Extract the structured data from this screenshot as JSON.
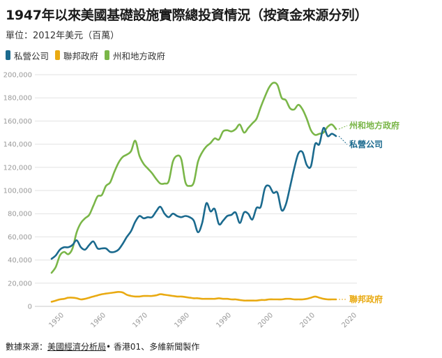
{
  "title": "1947年以來美國基礎設施實際總投資情況（按資金來源分列）",
  "subtitle": "單位：2012年美元（百萬）",
  "footer": {
    "prefix": "數據來源：",
    "source": "美國經濟分析局",
    "suffix": "• 香港01、多維新聞製作"
  },
  "colors": {
    "private": "#1b6a8e",
    "federal": "#e9aa12",
    "state_local": "#7ab648",
    "grid": "#e2e2e2",
    "axis_text": "#999999"
  },
  "chart_data": {
    "type": "line",
    "x_label": "",
    "y_label": "",
    "xlim": [
      1943,
      2020
    ],
    "ylim": [
      0,
      200000
    ],
    "x_ticks": [
      1950,
      1960,
      1970,
      1980,
      1990,
      2000,
      2010,
      2020
    ],
    "y_ticks": [
      0,
      20000,
      40000,
      60000,
      80000,
      100000,
      120000,
      140000,
      160000,
      180000,
      200000
    ],
    "y_tick_labels": [
      "0",
      "20,000",
      "40,000",
      "60,000",
      "80,000",
      "100,000",
      "120,000",
      "140,000",
      "160,000",
      "180,000",
      "200,000"
    ],
    "grid": true,
    "legend_position": "top-left",
    "series": [
      {
        "name": "私營公司",
        "key": "private",
        "end_label": "私營公司",
        "points": [
          [
            1947,
            41000
          ],
          [
            1948,
            44000
          ],
          [
            1949,
            49000
          ],
          [
            1950,
            51000
          ],
          [
            1951,
            51000
          ],
          [
            1952,
            53000
          ],
          [
            1953,
            57000
          ],
          [
            1954,
            51000
          ],
          [
            1955,
            49000
          ],
          [
            1956,
            53000
          ],
          [
            1957,
            56000
          ],
          [
            1958,
            50000
          ],
          [
            1959,
            50000
          ],
          [
            1960,
            50000
          ],
          [
            1961,
            47000
          ],
          [
            1962,
            47000
          ],
          [
            1963,
            49000
          ],
          [
            1964,
            54000
          ],
          [
            1965,
            60000
          ],
          [
            1966,
            65000
          ],
          [
            1967,
            73000
          ],
          [
            1968,
            78000
          ],
          [
            1969,
            76000
          ],
          [
            1970,
            77000
          ],
          [
            1971,
            77000
          ],
          [
            1972,
            82000
          ],
          [
            1973,
            86000
          ],
          [
            1974,
            80000
          ],
          [
            1975,
            77000
          ],
          [
            1976,
            80000
          ],
          [
            1977,
            78000
          ],
          [
            1978,
            77000
          ],
          [
            1979,
            78000
          ],
          [
            1980,
            77000
          ],
          [
            1981,
            74000
          ],
          [
            1982,
            64000
          ],
          [
            1983,
            72000
          ],
          [
            1984,
            89000
          ],
          [
            1985,
            82000
          ],
          [
            1986,
            84000
          ],
          [
            1987,
            71000
          ],
          [
            1988,
            74000
          ],
          [
            1989,
            78000
          ],
          [
            1990,
            79000
          ],
          [
            1991,
            81000
          ],
          [
            1992,
            72000
          ],
          [
            1993,
            81000
          ],
          [
            1994,
            80000
          ],
          [
            1995,
            75000
          ],
          [
            1996,
            85000
          ],
          [
            1997,
            86000
          ],
          [
            1998,
            102000
          ],
          [
            1999,
            104000
          ],
          [
            2000,
            98000
          ],
          [
            2001,
            98000
          ],
          [
            2002,
            83000
          ],
          [
            2003,
            88000
          ],
          [
            2004,
            103000
          ],
          [
            2005,
            119000
          ],
          [
            2006,
            132000
          ],
          [
            2007,
            133000
          ],
          [
            2008,
            122000
          ],
          [
            2009,
            121000
          ],
          [
            2010,
            140000
          ],
          [
            2011,
            140000
          ],
          [
            2012,
            154000
          ],
          [
            2013,
            147000
          ],
          [
            2014,
            149000
          ],
          [
            2015,
            147000
          ]
        ]
      },
      {
        "name": "聯邦政府",
        "key": "federal",
        "end_label": "聯邦政府",
        "points": [
          [
            1947,
            4000
          ],
          [
            1948,
            5000
          ],
          [
            1949,
            6000
          ],
          [
            1950,
            6500
          ],
          [
            1951,
            7500
          ],
          [
            1952,
            7500
          ],
          [
            1953,
            7000
          ],
          [
            1954,
            6000
          ],
          [
            1955,
            6500
          ],
          [
            1956,
            7500
          ],
          [
            1957,
            8500
          ],
          [
            1958,
            9500
          ],
          [
            1959,
            10500
          ],
          [
            1960,
            11000
          ],
          [
            1961,
            11500
          ],
          [
            1962,
            12000
          ],
          [
            1963,
            12500
          ],
          [
            1964,
            12000
          ],
          [
            1965,
            10000
          ],
          [
            1966,
            9000
          ],
          [
            1967,
            8500
          ],
          [
            1968,
            8500
          ],
          [
            1969,
            9000
          ],
          [
            1970,
            9000
          ],
          [
            1971,
            9000
          ],
          [
            1972,
            9500
          ],
          [
            1973,
            10500
          ],
          [
            1974,
            10000
          ],
          [
            1975,
            9500
          ],
          [
            1976,
            9000
          ],
          [
            1977,
            8500
          ],
          [
            1978,
            8500
          ],
          [
            1979,
            8000
          ],
          [
            1980,
            7500
          ],
          [
            1981,
            7000
          ],
          [
            1982,
            7000
          ],
          [
            1983,
            6500
          ],
          [
            1984,
            6500
          ],
          [
            1985,
            6500
          ],
          [
            1986,
            6500
          ],
          [
            1987,
            7000
          ],
          [
            1988,
            6500
          ],
          [
            1989,
            6500
          ],
          [
            1990,
            6000
          ],
          [
            1991,
            6000
          ],
          [
            1992,
            5500
          ],
          [
            1993,
            5000
          ],
          [
            1994,
            5000
          ],
          [
            1995,
            5000
          ],
          [
            1996,
            5000
          ],
          [
            1997,
            5500
          ],
          [
            1998,
            5500
          ],
          [
            1999,
            6000
          ],
          [
            2000,
            6000
          ],
          [
            2001,
            6000
          ],
          [
            2002,
            6000
          ],
          [
            2003,
            6500
          ],
          [
            2004,
            6500
          ],
          [
            2005,
            6000
          ],
          [
            2006,
            6000
          ],
          [
            2007,
            6000
          ],
          [
            2008,
            6500
          ],
          [
            2009,
            7500
          ],
          [
            2010,
            8500
          ],
          [
            2011,
            7500
          ],
          [
            2012,
            6500
          ],
          [
            2013,
            6000
          ],
          [
            2014,
            6000
          ],
          [
            2015,
            6000
          ]
        ]
      },
      {
        "name": "州和地方政府",
        "key": "state_local",
        "end_label": "州和地方政府",
        "points": [
          [
            1947,
            29000
          ],
          [
            1948,
            34000
          ],
          [
            1949,
            44000
          ],
          [
            1950,
            47000
          ],
          [
            1951,
            45000
          ],
          [
            1952,
            50000
          ],
          [
            1953,
            64000
          ],
          [
            1954,
            72000
          ],
          [
            1955,
            76000
          ],
          [
            1956,
            79000
          ],
          [
            1957,
            87000
          ],
          [
            1958,
            95000
          ],
          [
            1959,
            96000
          ],
          [
            1960,
            104000
          ],
          [
            1961,
            107000
          ],
          [
            1962,
            116000
          ],
          [
            1963,
            124000
          ],
          [
            1964,
            129000
          ],
          [
            1965,
            131000
          ],
          [
            1966,
            134000
          ],
          [
            1967,
            143000
          ],
          [
            1968,
            130000
          ],
          [
            1969,
            123000
          ],
          [
            1970,
            119000
          ],
          [
            1971,
            115000
          ],
          [
            1972,
            110000
          ],
          [
            1973,
            106000
          ],
          [
            1974,
            106000
          ],
          [
            1975,
            108000
          ],
          [
            1976,
            125000
          ],
          [
            1977,
            130000
          ],
          [
            1978,
            127000
          ],
          [
            1979,
            107000
          ],
          [
            1980,
            104000
          ],
          [
            1981,
            107000
          ],
          [
            1982,
            125000
          ],
          [
            1983,
            133000
          ],
          [
            1984,
            138000
          ],
          [
            1985,
            141000
          ],
          [
            1986,
            145000
          ],
          [
            1987,
            144000
          ],
          [
            1988,
            151000
          ],
          [
            1989,
            152000
          ],
          [
            1990,
            151000
          ],
          [
            1991,
            153000
          ],
          [
            1992,
            157000
          ],
          [
            1993,
            150000
          ],
          [
            1994,
            154000
          ],
          [
            1995,
            158000
          ],
          [
            1996,
            162000
          ],
          [
            1997,
            172000
          ],
          [
            1998,
            181000
          ],
          [
            1999,
            189000
          ],
          [
            2000,
            193000
          ],
          [
            2001,
            191000
          ],
          [
            2002,
            180000
          ],
          [
            2003,
            178000
          ],
          [
            2004,
            171000
          ],
          [
            2005,
            170000
          ],
          [
            2006,
            174000
          ],
          [
            2007,
            170000
          ],
          [
            2008,
            162000
          ],
          [
            2009,
            152000
          ],
          [
            2010,
            148000
          ],
          [
            2011,
            149000
          ],
          [
            2012,
            150000
          ],
          [
            2013,
            155000
          ],
          [
            2014,
            157000
          ],
          [
            2015,
            153000
          ]
        ]
      }
    ]
  }
}
